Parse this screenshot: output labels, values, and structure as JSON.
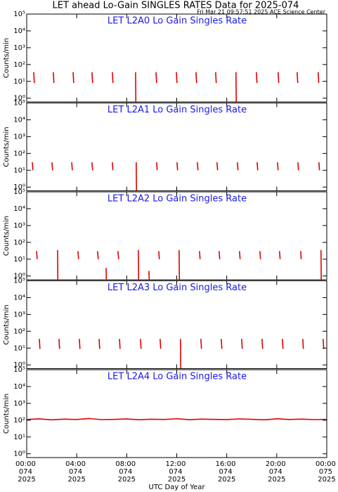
{
  "title": "LET ahead Lo-Gain SINGLES RATES Data for 2025-074",
  "timestamp": "Fri Mar 21 09:57:51 2025 ACE Science Center",
  "chart_data": [
    {
      "type": "line",
      "title": "LET L2A0 Lo Gain Singles Rate",
      "ylabel": "Counts/min",
      "log_scale": true,
      "xlim": [
        0,
        24
      ],
      "xticks": [
        0,
        4,
        8,
        12,
        16,
        20,
        24
      ],
      "ylim": [
        0.6,
        100000
      ],
      "yticks": [
        {
          "value": 1,
          "label": "10⁰"
        },
        {
          "value": 10,
          "label": "10¹"
        },
        {
          "value": 100,
          "label": "10²"
        },
        {
          "value": 1000,
          "label": "10³"
        },
        {
          "value": 10000,
          "label": "10⁴"
        },
        {
          "value": 100000,
          "label": "10⁵"
        }
      ],
      "series": [
        {
          "color": "#e00000",
          "x": [
            0.56,
            0.61,
            null,
            2.13,
            2.18,
            null,
            3.71,
            3.76,
            null,
            5.22,
            5.27,
            null,
            6.85,
            6.9,
            null,
            8.71,
            8.73,
            null,
            10.34,
            10.39,
            null,
            11.97,
            12.02,
            null,
            13.54,
            13.59,
            null,
            15.11,
            15.16,
            null,
            16.74,
            16.76,
            null,
            18.37,
            18.42,
            null,
            20.11,
            20.16,
            null,
            21.63,
            21.68,
            null,
            23.31,
            23.36
          ],
          "values": [
            35,
            8,
            null,
            35,
            8,
            null,
            35,
            8,
            null,
            35,
            8,
            null,
            35,
            8,
            null,
            35,
            0.6,
            null,
            35,
            8,
            null,
            35,
            8,
            null,
            35,
            8,
            null,
            35,
            8,
            null,
            35,
            0.6,
            null,
            35,
            8,
            null,
            35,
            8,
            null,
            35,
            8,
            null,
            35,
            8
          ]
        }
      ]
    },
    {
      "type": "line",
      "title": "LET L2A1 Lo Gain Singles Rate",
      "ylabel": "Counts/min",
      "log_scale": true,
      "xlim": [
        0,
        24
      ],
      "xticks": [
        0,
        4,
        8,
        12,
        16,
        20,
        24
      ],
      "ylim": [
        0.6,
        100000
      ],
      "yticks": [
        {
          "value": 1,
          "label": "10⁰"
        },
        {
          "value": 10,
          "label": "10¹"
        },
        {
          "value": 100,
          "label": "10²"
        },
        {
          "value": 1000,
          "label": "10³"
        },
        {
          "value": 10000,
          "label": "10⁴"
        },
        {
          "value": 100000,
          "label": "10⁵"
        }
      ],
      "series": [
        {
          "color": "#e00000",
          "x": [
            0.45,
            0.5,
            null,
            2.02,
            2.07,
            null,
            3.6,
            3.65,
            null,
            5.22,
            5.27,
            null,
            6.85,
            6.9,
            null,
            8.76,
            8.78,
            null,
            10.39,
            10.44,
            null,
            12.02,
            12.07,
            null,
            13.65,
            13.7,
            null,
            15.22,
            15.27,
            null,
            16.85,
            16.9,
            null,
            18.43,
            18.48,
            null,
            20.06,
            20.11,
            null,
            21.69,
            21.74,
            null,
            23.37,
            23.42
          ],
          "values": [
            30,
            10,
            null,
            30,
            10,
            null,
            30,
            10,
            null,
            30,
            10,
            null,
            30,
            10,
            null,
            30,
            0.6,
            null,
            30,
            10,
            null,
            30,
            10,
            null,
            30,
            10,
            null,
            30,
            10,
            null,
            30,
            10,
            null,
            30,
            10,
            null,
            30,
            10,
            null,
            30,
            10,
            null,
            30,
            10
          ]
        }
      ]
    },
    {
      "type": "line",
      "title": "LET L2A2 Lo Gain Singles Rate",
      "ylabel": "Counts/min",
      "log_scale": true,
      "xlim": [
        0,
        24
      ],
      "xticks": [
        0,
        4,
        8,
        12,
        16,
        20,
        24
      ],
      "ylim": [
        0.6,
        100000
      ],
      "yticks": [
        {
          "value": 1,
          "label": "10⁰"
        },
        {
          "value": 10,
          "label": "10¹"
        },
        {
          "value": 100,
          "label": "10²"
        },
        {
          "value": 1000,
          "label": "10³"
        },
        {
          "value": 10000,
          "label": "10⁴"
        },
        {
          "value": 100000,
          "label": "10⁵"
        }
      ],
      "series": [
        {
          "color": "#e00000",
          "x": [
            0.79,
            0.84,
            null,
            2.47,
            2.49,
            null,
            4.1,
            4.15,
            null,
            5.67,
            5.72,
            null,
            6.35,
            6.37,
            null,
            7.3,
            7.35,
            null,
            8.93,
            8.95,
            null,
            9.78,
            9.8,
            null,
            10.56,
            10.61,
            null,
            12.19,
            12.21,
            null,
            13.82,
            13.87,
            null,
            15.39,
            15.44,
            null,
            17.02,
            17.07,
            null,
            18.65,
            18.7,
            null,
            20.22,
            20.27,
            null,
            21.91,
            21.96,
            null,
            23.54,
            23.56
          ],
          "values": [
            30,
            10,
            null,
            35,
            0.6,
            null,
            30,
            10,
            null,
            30,
            10,
            null,
            3,
            0.6,
            null,
            30,
            10,
            null,
            35,
            0.6,
            null,
            2,
            0.6,
            null,
            30,
            10,
            null,
            35,
            0.6,
            null,
            30,
            10,
            null,
            30,
            10,
            null,
            30,
            10,
            null,
            30,
            10,
            null,
            30,
            10,
            null,
            30,
            10,
            null,
            35,
            0.6
          ]
        }
      ]
    },
    {
      "type": "line",
      "title": "LET L2A3 Lo Gain Singles Rate",
      "ylabel": "Counts/min",
      "log_scale": true,
      "xlim": [
        0,
        24
      ],
      "xticks": [
        0,
        4,
        8,
        12,
        16,
        20,
        24
      ],
      "ylim": [
        0.6,
        100000
      ],
      "yticks": [
        {
          "value": 1,
          "label": "10⁰"
        },
        {
          "value": 10,
          "label": "10¹"
        },
        {
          "value": 100,
          "label": "10²"
        },
        {
          "value": 1000,
          "label": "10³"
        },
        {
          "value": 10000,
          "label": "10⁴"
        },
        {
          "value": 100000,
          "label": "10⁵"
        }
      ],
      "series": [
        {
          "color": "#e00000",
          "x": [
            1.01,
            1.06,
            null,
            2.58,
            2.63,
            null,
            4.21,
            4.26,
            null,
            5.79,
            5.84,
            null,
            7.42,
            7.47,
            null,
            9.1,
            9.15,
            null,
            10.67,
            10.72,
            null,
            12.3,
            12.32,
            null,
            13.93,
            13.98,
            null,
            15.56,
            15.61,
            null,
            17.19,
            17.24,
            null,
            18.82,
            18.87,
            null,
            20.45,
            20.5,
            null,
            22.08,
            22.13,
            null,
            23.71,
            23.76
          ],
          "values": [
            35,
            9,
            null,
            35,
            9,
            null,
            35,
            9,
            null,
            35,
            9,
            null,
            35,
            9,
            null,
            35,
            9,
            null,
            35,
            9,
            null,
            35,
            0.6,
            null,
            35,
            9,
            null,
            35,
            9,
            null,
            35,
            9,
            null,
            35,
            9,
            null,
            35,
            9,
            null,
            35,
            9,
            null,
            35,
            9
          ]
        }
      ]
    },
    {
      "type": "line",
      "title": "LET L2A4 Lo Gain Singles Rate",
      "ylabel": "Counts/min",
      "log_scale": true,
      "xlim": [
        0,
        24
      ],
      "xticks": [
        {
          "value": 0,
          "label": "00:00 074 2025"
        },
        {
          "value": 4,
          "label": "04:00 074 2025"
        },
        {
          "value": 8,
          "label": "08:00 074 2025"
        },
        {
          "value": 12,
          "label": "12:00 074 2025"
        },
        {
          "value": 16,
          "label": "16:00 074 2025"
        },
        {
          "value": 20,
          "label": "20:00 074 2025"
        },
        {
          "value": 24,
          "label": "00:00 075 2025"
        }
      ],
      "xlabel": "UTC Day of Year",
      "ylim": [
        0.6,
        100000
      ],
      "yticks": [
        {
          "value": 1,
          "label": "10⁰"
        },
        {
          "value": 10,
          "label": "10¹"
        },
        {
          "value": 100,
          "label": "10²"
        },
        {
          "value": 1000,
          "label": "10³"
        },
        {
          "value": 10000,
          "label": "10⁴"
        },
        {
          "value": 100000,
          "label": "10⁵"
        }
      ],
      "series": [
        {
          "color": "#e00000",
          "x": [
            0,
            1,
            2,
            3,
            4,
            5,
            6,
            7,
            8,
            9,
            10,
            11,
            12,
            13,
            14,
            15,
            16,
            17,
            18,
            19,
            20,
            21,
            22,
            23,
            24
          ],
          "values": [
            110,
            120,
            105,
            115,
            110,
            125,
            108,
            112,
            118,
            106,
            114,
            110,
            122,
            107,
            116,
            111,
            109,
            119,
            113,
            105,
            121,
            110,
            115,
            108,
            112
          ]
        }
      ]
    }
  ]
}
